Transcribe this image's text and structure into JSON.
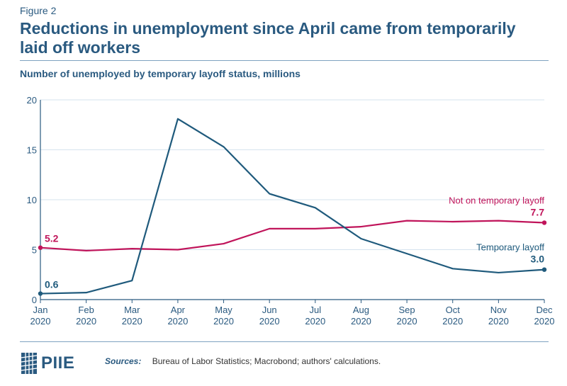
{
  "figure_label": "Figure 2",
  "title": "Reductions in unemployment since April came from temporarily laid off workers",
  "subtitle": "Number of unemployed by temporary layoff status, millions",
  "sources_label": "Sources:",
  "sources_text": "Bureau of Labor Statistics; Macrobond; authors' calculations.",
  "logo_text": "PIIE",
  "colors": {
    "temporary": "#1f5a7c",
    "not_temporary": "#c0145a",
    "text": "#2a5a80",
    "grid": "#d5e3ee"
  },
  "chart_data": {
    "type": "line",
    "categories": [
      [
        "Jan",
        "2020"
      ],
      [
        "Feb",
        "2020"
      ],
      [
        "Mar",
        "2020"
      ],
      [
        "Apr",
        "2020"
      ],
      [
        "May",
        "2020"
      ],
      [
        "Jun",
        "2020"
      ],
      [
        "Jul",
        "2020"
      ],
      [
        "Aug",
        "2020"
      ],
      [
        "Sep",
        "2020"
      ],
      [
        "Oct",
        "2020"
      ],
      [
        "Nov",
        "2020"
      ],
      [
        "Dec",
        "2020"
      ]
    ],
    "ylim": [
      0,
      20
    ],
    "yticks": [
      0,
      5,
      10,
      15,
      20
    ],
    "grid": true,
    "series": [
      {
        "key": "not_temporary",
        "name": "Not on temporary layoff",
        "values": [
          5.2,
          4.9,
          5.1,
          5.0,
          5.6,
          7.1,
          7.1,
          7.3,
          7.9,
          7.8,
          7.9,
          7.7
        ],
        "start_label": "5.2",
        "end_label": "7.7"
      },
      {
        "key": "temporary",
        "name": "Temporary layoff",
        "values": [
          0.6,
          0.7,
          1.9,
          18.1,
          15.3,
          10.6,
          9.2,
          6.1,
          4.6,
          3.1,
          2.7,
          3.0
        ],
        "start_label": "0.6",
        "end_label": "3.0"
      }
    ]
  }
}
